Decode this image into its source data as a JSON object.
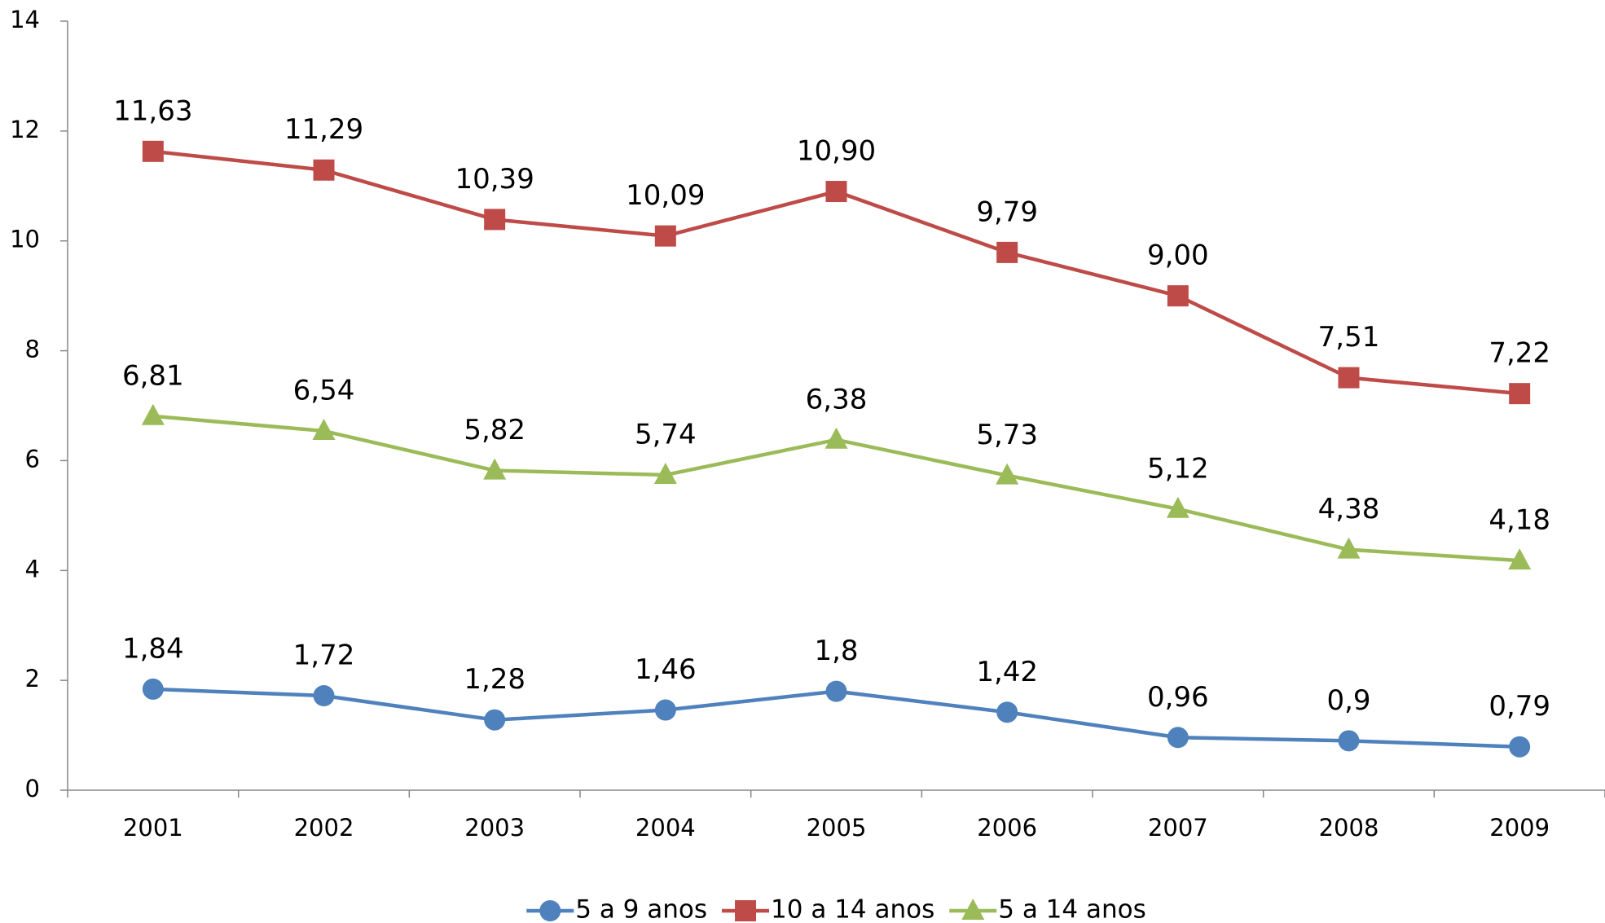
{
  "chart_data": {
    "type": "line",
    "categories": [
      "2001",
      "2002",
      "2003",
      "2004",
      "2005",
      "2006",
      "2007",
      "2008",
      "2009"
    ],
    "series": [
      {
        "name": "5 a 9 anos",
        "color": "#4f81bd",
        "marker": "circle",
        "values": [
          1.84,
          1.72,
          1.28,
          1.46,
          1.8,
          1.42,
          0.96,
          0.9,
          0.79
        ],
        "value_labels": [
          "1,84",
          "1,72",
          "1,28",
          "1,46",
          "1,8",
          "1,42",
          "0,96",
          "0,9",
          "0,79"
        ]
      },
      {
        "name": "10 a 14 anos",
        "color": "#be4b48",
        "marker": "square",
        "values": [
          11.63,
          11.29,
          10.39,
          10.09,
          10.9,
          9.79,
          9.0,
          7.51,
          7.22
        ],
        "value_labels": [
          "11,63",
          "11,29",
          "10,39",
          "10,09",
          "10,90",
          "9,79",
          "9,00",
          "7,51",
          "7,22"
        ]
      },
      {
        "name": "5 a 14 anos",
        "color": "#9bbb59",
        "marker": "triangle",
        "values": [
          6.81,
          6.54,
          5.82,
          5.74,
          6.38,
          5.73,
          5.12,
          4.38,
          4.18
        ],
        "value_labels": [
          "6,81",
          "6,54",
          "5,82",
          "5,74",
          "6,38",
          "5,73",
          "5,12",
          "4,38",
          "4,18"
        ]
      }
    ],
    "ylim": [
      0,
      14
    ],
    "yticks": [
      0,
      2,
      4,
      6,
      8,
      10,
      12,
      14
    ],
    "grid": false,
    "legend": "bottom"
  }
}
